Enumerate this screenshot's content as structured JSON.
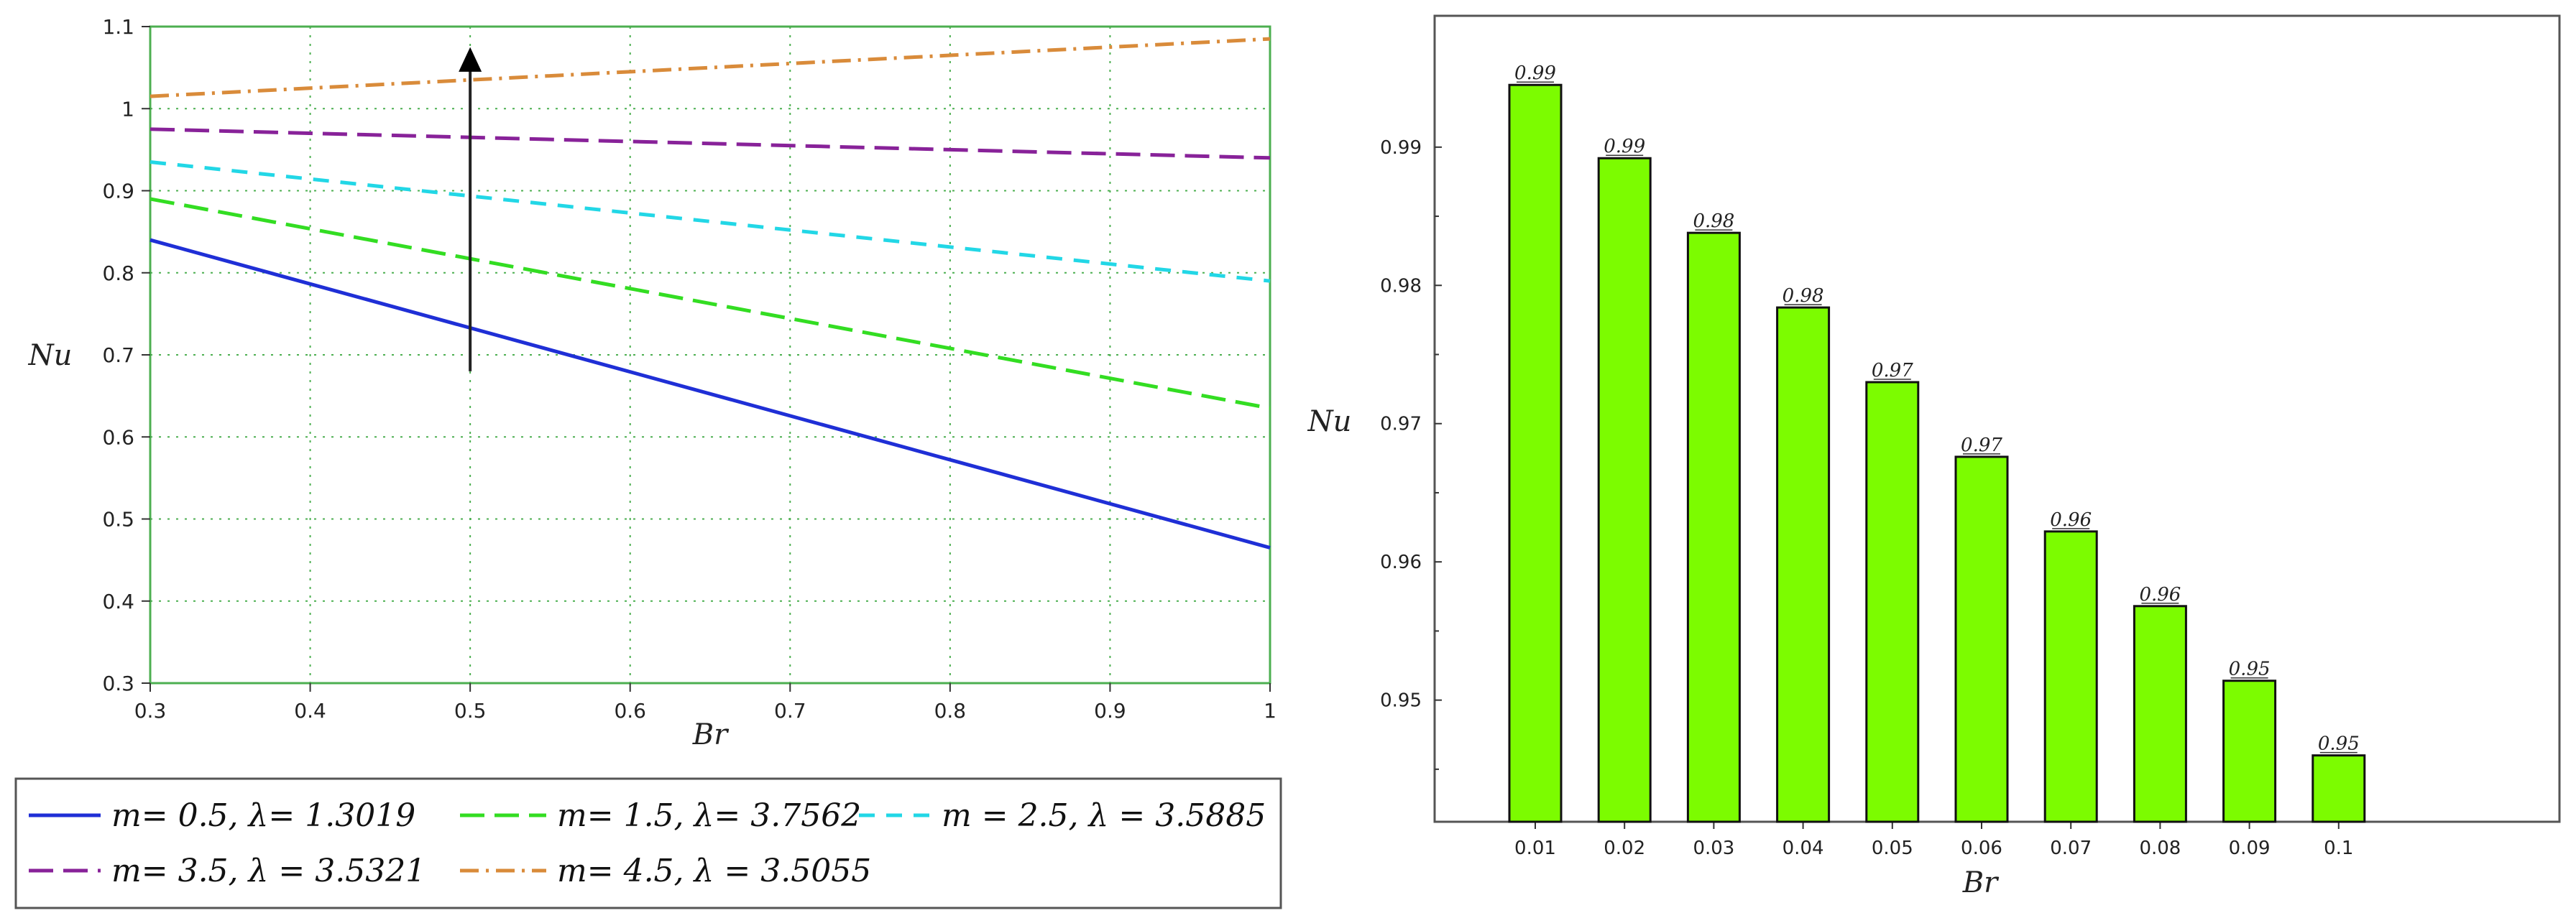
{
  "chart_data": [
    {
      "type": "line",
      "xlabel": "Br",
      "ylabel": "Nu",
      "xlim": [
        0.3,
        1.0
      ],
      "ylim": [
        0.3,
        1.1
      ],
      "x_ticks": [
        "0.3",
        "0.4",
        "0.5",
        "0.6",
        "0.7",
        "0.8",
        "0.9",
        "1"
      ],
      "y_ticks": [
        "0.3",
        "0.4",
        "0.5",
        "0.6",
        "0.7",
        "0.8",
        "0.9",
        "1",
        "1.1"
      ],
      "grid": true,
      "legend_position": "bottom",
      "annotation": "upward arrow at Br = 0.5 from Nu ≈ 0.68 to Nu ≈ 1.07",
      "series": [
        {
          "name": "m= 0.5, λ= 1.3019",
          "color": "#1f2fd6",
          "dash": "solid",
          "x": [
            0.3,
            1.0
          ],
          "y": [
            0.84,
            0.465
          ]
        },
        {
          "name": "m= 1.5, λ= 3.7562",
          "color": "#33dd22",
          "dash": "long-dash",
          "x": [
            0.3,
            1.0
          ],
          "y": [
            0.89,
            0.635
          ]
        },
        {
          "name": "m = 2.5, λ = 3.5885",
          "color": "#22d7e6",
          "dash": "dash",
          "x": [
            0.3,
            1.0
          ],
          "y": [
            0.935,
            0.79
          ]
        },
        {
          "name": "m= 3.5, λ = 3.5321",
          "color": "#882299",
          "dash": "long-dash",
          "x": [
            0.3,
            1.0
          ],
          "y": [
            0.975,
            0.94
          ]
        },
        {
          "name": "m= 4.5, λ = 3.5055",
          "color": "#d98b3a",
          "dash": "dash-dot",
          "x": [
            0.3,
            1.0
          ],
          "y": [
            1.015,
            1.085
          ]
        }
      ]
    },
    {
      "type": "bar",
      "xlabel": "Br",
      "ylabel": "Nu",
      "categories": [
        "0.01",
        "0.02",
        "0.03",
        "0.04",
        "0.05",
        "0.06",
        "0.07",
        "0.08",
        "0.09",
        "0.1"
      ],
      "values": [
        0.9945,
        0.9892,
        0.9838,
        0.9784,
        0.973,
        0.9676,
        0.9622,
        0.9568,
        0.9514,
        0.946
      ],
      "data_labels": [
        "0.99",
        "0.99",
        "0.98",
        "0.98",
        "0.97",
        "0.97",
        "0.96",
        "0.96",
        "0.95",
        "0.95"
      ],
      "y_ticks": [
        "0.95",
        "0.96",
        "0.97",
        "0.98",
        "0.99"
      ],
      "ylim": [
        0.9412,
        0.9995
      ],
      "bar_color": "#7cfc00",
      "grid": false
    }
  ]
}
